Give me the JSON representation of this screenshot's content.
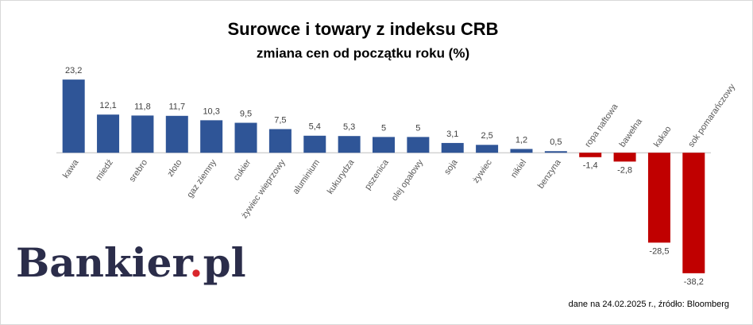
{
  "chart_data": {
    "type": "bar",
    "title": "Surowce i towary z indeksu CRB",
    "subtitle": "zmiana cen od początku roku (%)",
    "categories": [
      "kawa",
      "miedź",
      "srebro",
      "złoto",
      "gaz ziemny",
      "cukier",
      "żywiec wieprzowy",
      "aluminium",
      "kukurydza",
      "pszenica",
      "olej opałowy",
      "soja",
      "żywiec",
      "nikiel",
      "benzyna",
      "ropa naftowa",
      "bawełna",
      "kakao",
      "sok pomarańczowy"
    ],
    "values": [
      23.2,
      12.1,
      11.8,
      11.7,
      10.3,
      9.5,
      7.5,
      5.4,
      5.3,
      5,
      5,
      3.1,
      2.5,
      1.2,
      0.5,
      -1.4,
      -2.8,
      -28.5,
      -38.2
    ],
    "value_labels": [
      "23,2",
      "12,1",
      "11,8",
      "11,7",
      "10,3",
      "9,5",
      "7,5",
      "5,4",
      "5,3",
      "5",
      "5",
      "3,1",
      "2,5",
      "1,2",
      "0,5",
      "-1,4",
      "-2,8",
      "-28,5",
      "-38,2"
    ],
    "colors": [
      "#2f5597",
      "#2f5597",
      "#2f5597",
      "#2f5597",
      "#2f5597",
      "#2f5597",
      "#2f5597",
      "#2f5597",
      "#2f5597",
      "#2f5597",
      "#2f5597",
      "#2f5597",
      "#2f5597",
      "#2f5597",
      "#2f5597",
      "#c00000",
      "#c00000",
      "#c00000",
      "#c00000"
    ],
    "ylim": [
      -40,
      25
    ],
    "grid": false
  },
  "logo": {
    "name": "Bankier",
    "dot": ".",
    "suffix": "pl"
  },
  "source": "dane na 24.02.2025 r., źródło: Bloomberg"
}
